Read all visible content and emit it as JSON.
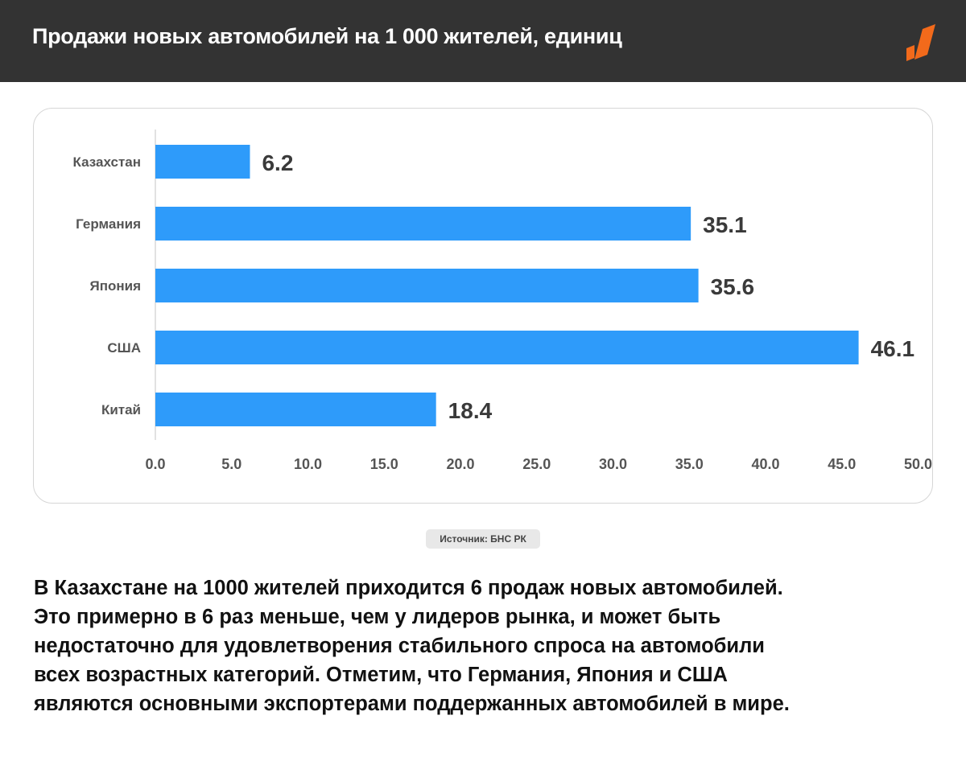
{
  "header": {
    "title": "Продажи новых автомобилей на 1 000 жителей, единиц"
  },
  "colors": {
    "header_bg": "#333333",
    "bar": "#2e9bfa",
    "logo": "#f26a1b"
  },
  "chart_data": {
    "type": "bar",
    "orientation": "horizontal",
    "categories": [
      "Казахстан",
      "Германия",
      "Япония",
      "США",
      "Китай"
    ],
    "values": [
      6.2,
      35.1,
      35.6,
      46.1,
      18.4
    ],
    "value_labels": [
      "6.2",
      "35.1",
      "35.6",
      "46.1",
      "18.4"
    ],
    "xlim": [
      0,
      50
    ],
    "ticks": [
      "0.0",
      "5.0",
      "10.0",
      "15.0",
      "20.0",
      "25.0",
      "30.0",
      "35.0",
      "40.0",
      "45.0",
      "50.0"
    ],
    "grid": false
  },
  "source": {
    "label": "Источник: БНС РК"
  },
  "summary": {
    "lines": [
      "В Казахстане на 1000 жителей приходится 6 продаж новых автомобилей.",
      "Это примерно в 6 раз меньше, чем у лидеров рынка, и может быть",
      "недостаточно для удовлетворения стабильного спроса на автомобили",
      "всех возрастных категорий. Отметим, что Германия, Япония и США",
      "являются основными экспортерами поддержанных автомобилей в мире."
    ]
  }
}
